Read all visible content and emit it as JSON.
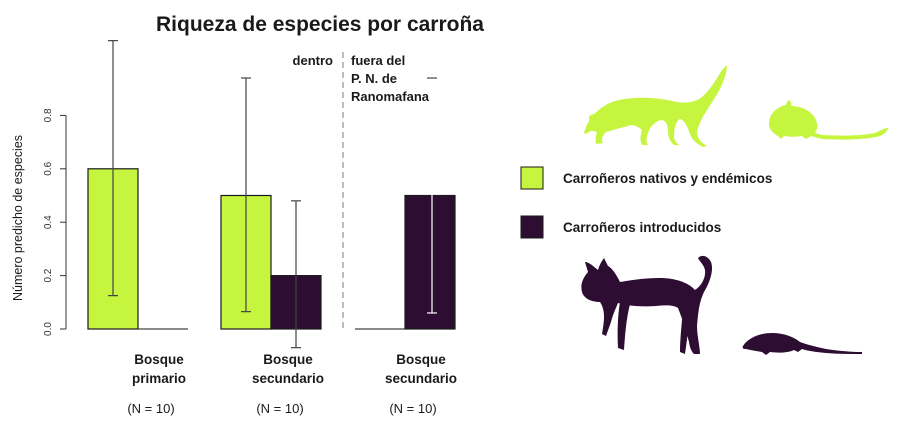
{
  "chart_data": {
    "type": "bar",
    "title": "Riqueza de especies por carroña",
    "ylabel": "Número predicho de especies",
    "xlabel": "",
    "ylim": [
      0,
      0.9
    ],
    "yticks": [
      "0.0",
      "0.2",
      "0.4",
      "0.6",
      "0.8"
    ],
    "grid": false,
    "legend_position": "right",
    "regions": [
      "dentro",
      "fuera del P. N. de Ranomafana"
    ],
    "categories": [
      {
        "label_line1": "Bosque",
        "label_line2": "primario",
        "n": "(N = 10)"
      },
      {
        "label_line1": "Bosque",
        "label_line2": "secundario",
        "n": "(N = 10)"
      },
      {
        "label_line1": "Bosque",
        "label_line2": "secundario",
        "n": "(N = 10)"
      }
    ],
    "series": [
      {
        "name": "Carroñeros nativos y endémicos",
        "color": "#c5f53f",
        "values": [
          0.6,
          0.5,
          0.0
        ],
        "ci_low": [
          0.125,
          0.065,
          null
        ],
        "ci_high": [
          1.08,
          0.94,
          null
        ]
      },
      {
        "name": "Carroñeros introducidos",
        "color": "#2e0d33",
        "values": [
          0.0,
          0.2,
          0.5
        ],
        "ci_low": [
          null,
          -0.07,
          0.06
        ],
        "ci_high": [
          null,
          0.48,
          0.94
        ]
      }
    ]
  },
  "legend": {
    "native_label": "Carroñeros nativos y endémicos",
    "introduced_label": "Carroñeros introducidos",
    "native_color": "#c5f53f",
    "introduced_color": "#2e0d33"
  },
  "icons": [
    "mongoose-silhouette-icon",
    "mouse-silhouette-icon",
    "cat-silhouette-icon",
    "rat-silhouette-icon"
  ]
}
